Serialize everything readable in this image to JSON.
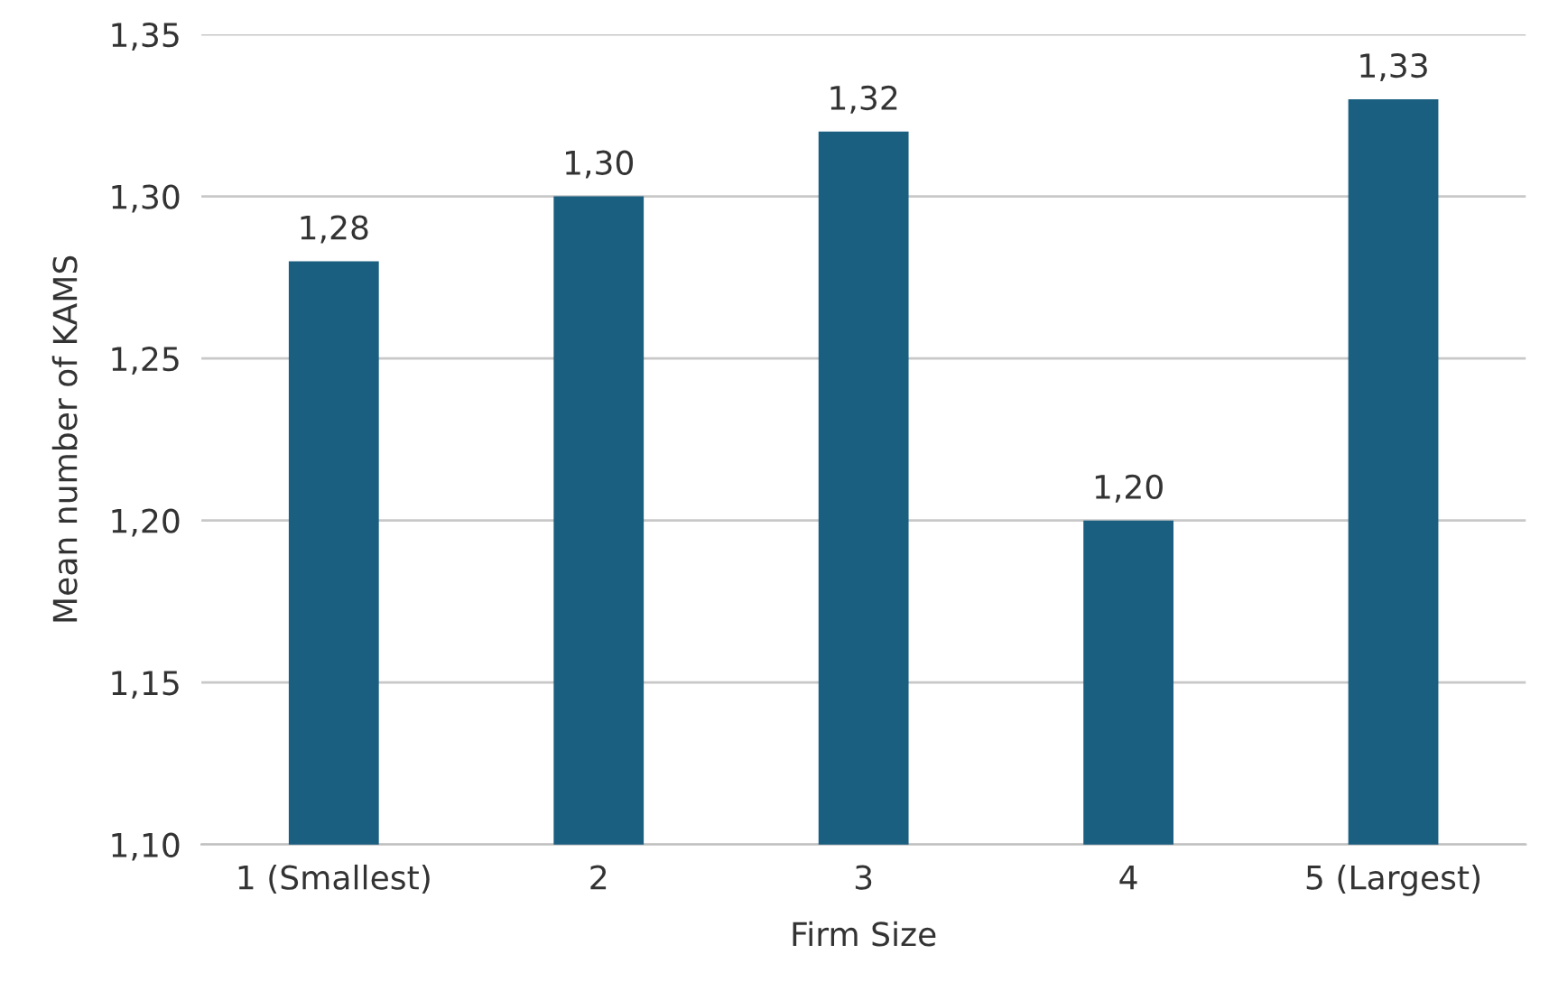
{
  "chart_data": {
    "type": "bar",
    "xlabel": "Firm Size",
    "ylabel": "Mean number of KAMS",
    "categories": [
      "1 (Smallest)",
      "2",
      "3",
      "4",
      "5 (Largest)"
    ],
    "values": [
      1.28,
      1.3,
      1.32,
      1.2,
      1.33
    ],
    "value_labels": [
      "1,28",
      "1,30",
      "1,32",
      "1,20",
      "1,33"
    ],
    "color": "#1a5e80",
    "ylim": [
      1.1,
      1.35
    ],
    "yticks": [
      {
        "value": 1.1,
        "label": "1,10"
      },
      {
        "value": 1.15,
        "label": "1,15"
      },
      {
        "value": 1.2,
        "label": "1,20"
      },
      {
        "value": 1.25,
        "label": "1,25"
      },
      {
        "value": 1.3,
        "label": "1,30"
      },
      {
        "value": 1.35,
        "label": "1,35"
      }
    ],
    "grid": "y"
  }
}
